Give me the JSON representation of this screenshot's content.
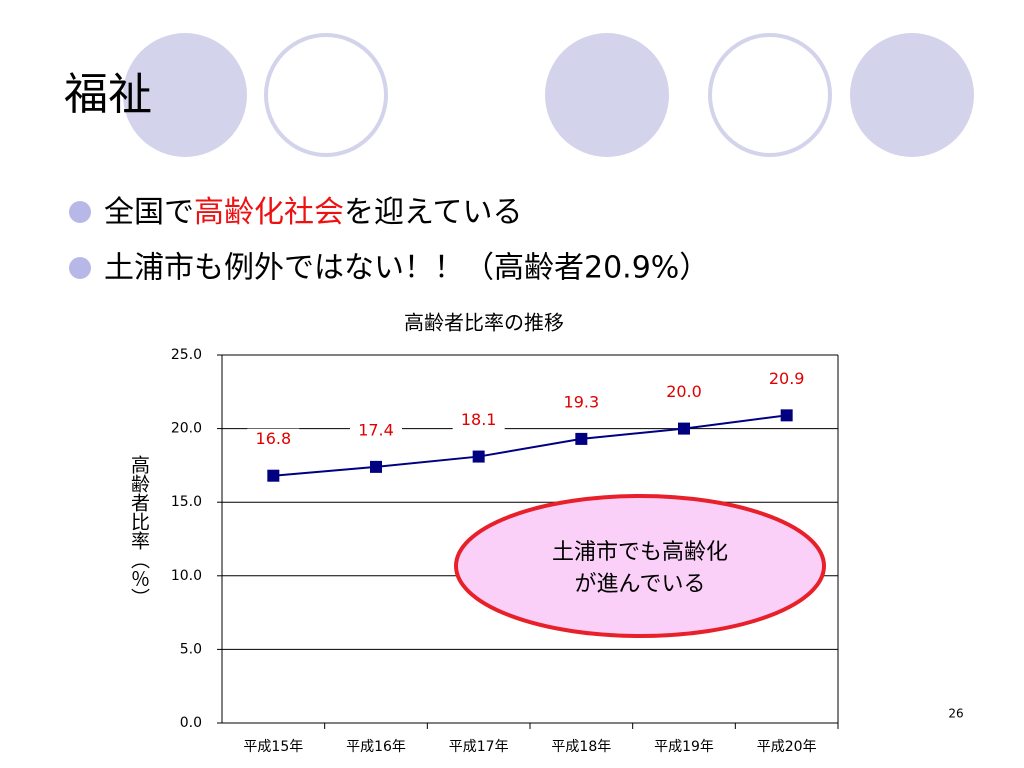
{
  "slide_title": "福祉",
  "bullets": [
    {
      "segments": [
        "全国で",
        "高齢化社会",
        "を迎えている"
      ]
    },
    {
      "segments": [
        "土浦市も例外ではない！！（高齢者20.9%）"
      ]
    }
  ],
  "page_number": "26",
  "chart_data": {
    "type": "line",
    "title": "高齢者比率の推移",
    "y_label": "高齢者比率（％）",
    "categories": [
      "平成15年",
      "平成16年",
      "平成17年",
      "平成18年",
      "平成19年",
      "平成20年"
    ],
    "series": [
      {
        "color": "#000080",
        "values": [
          16.8,
          17.4,
          18.1,
          19.3,
          20.0,
          20.9
        ],
        "value_labels": [
          "16.8",
          "17.4",
          "18.1",
          "19.3",
          "20.0",
          "20.9"
        ]
      }
    ],
    "ylim": [
      0,
      25
    ],
    "yticks": [
      {
        "value": 0,
        "label": "0.0"
      },
      {
        "value": 5,
        "label": "5.0"
      },
      {
        "value": 10,
        "label": "10.0"
      },
      {
        "value": 15,
        "label": "15.0"
      },
      {
        "value": 20,
        "label": "20.0"
      },
      {
        "value": 25,
        "label": "25.0"
      }
    ],
    "grid": true,
    "annotation": [
      "土浦市でも高齢化",
      "が進んでいる"
    ]
  }
}
